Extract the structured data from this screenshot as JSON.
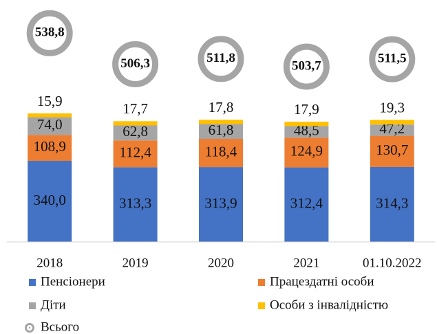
{
  "chart_data": {
    "type": "bar",
    "stacked": true,
    "categories": [
      "2018",
      "2019",
      "2020",
      "2021",
      "01.10.2022"
    ],
    "series": [
      {
        "name": "Пенсіонери",
        "color": "#4472c4",
        "values": [
          340.0,
          313.3,
          313.9,
          312.4,
          314.3
        ],
        "value_labels": [
          "340,0",
          "313,3",
          "313,9",
          "312,4",
          "314,3"
        ]
      },
      {
        "name": "Працездатні особи",
        "color": "#ed7d31",
        "values": [
          108.9,
          112.4,
          118.4,
          124.9,
          130.7
        ],
        "value_labels": [
          "108,9",
          "112,4",
          "118,4",
          "124,9",
          "130,7"
        ]
      },
      {
        "name": "Діти",
        "color": "#a5a5a5",
        "values": [
          74.0,
          62.8,
          61.8,
          48.5,
          47.2
        ],
        "value_labels": [
          "74,0",
          "62,8",
          "61,8",
          "48,5",
          "47,2"
        ]
      },
      {
        "name": "Особи з інвалідністю",
        "color": "#ffc000",
        "values": [
          15.9,
          17.7,
          17.8,
          17.9,
          19.3
        ],
        "value_labels": [
          "15,9",
          "17,7",
          "17,8",
          "17,9",
          "19,3"
        ]
      },
      {
        "name": "Всього",
        "color": "#a5a5a5",
        "type": "marker",
        "axis": "y2",
        "values": [
          538.8,
          506.3,
          511.8,
          503.7,
          511.5
        ],
        "value_labels": [
          "538,8",
          "506,3",
          "511,8",
          "503,7",
          "511,5"
        ]
      }
    ],
    "ylim": [
      0,
      1000
    ],
    "y2lim": [
      320,
      570
    ],
    "legend": "bottom"
  }
}
